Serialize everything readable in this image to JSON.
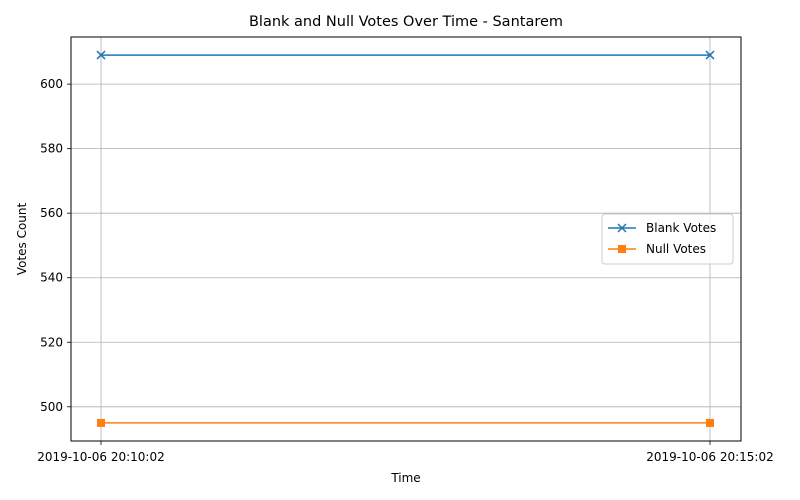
{
  "chart_data": {
    "type": "line",
    "title": "Blank and Null Votes Over Time - Santarem",
    "xlabel": "Time",
    "ylabel": "Votes Count",
    "categories": [
      "2019-10-06 20:10:02",
      "2019-10-06 20:15:02"
    ],
    "ylim": [
      489.4,
      614.6
    ],
    "yticks": [
      500,
      520,
      540,
      560,
      580,
      600
    ],
    "grid": true,
    "legend_position": "center-right",
    "series": [
      {
        "name": "Blank Votes",
        "values": [
          609,
          609
        ],
        "color": "#1f77b4",
        "marker": "x"
      },
      {
        "name": "Null Votes",
        "values": [
          495,
          495
        ],
        "color": "#ff7f0e",
        "marker": "square"
      }
    ]
  }
}
